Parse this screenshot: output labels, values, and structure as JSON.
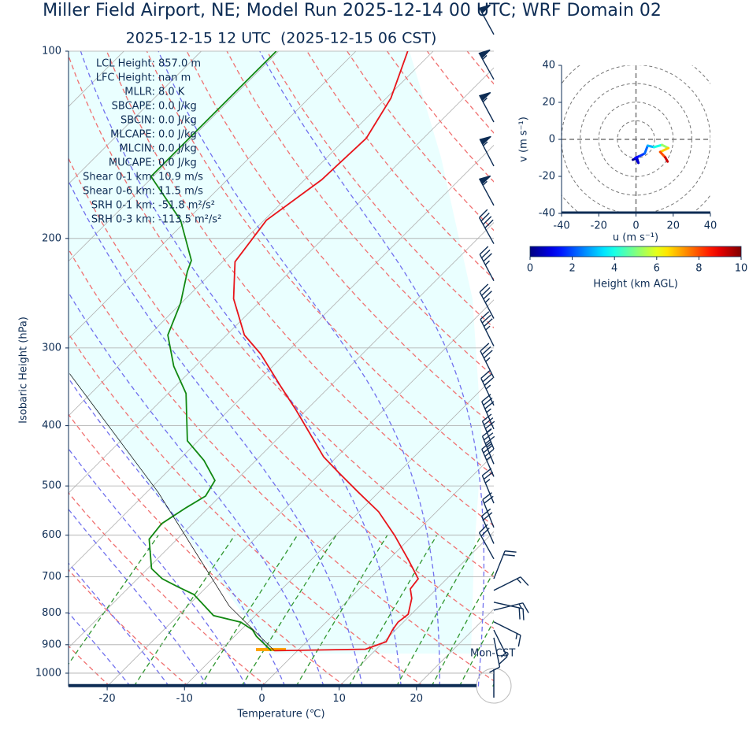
{
  "chart_data": [
    {
      "type": "skewt",
      "title": "Miller Field Airport, NE; Model Run 2025-12-14 00 UTC; WRF Domain 02",
      "subtitle": "2025-12-15 12 UTC  (2025-12-15 06 CST)",
      "xlabel": "Temperature (℃)",
      "ylabel": "Isobaric Height (hPa)",
      "xlim": [
        -25,
        30
      ],
      "ylim": [
        1050,
        100
      ],
      "yscale": "log",
      "skew_deg": 45,
      "xticks": [
        -20,
        -10,
        0,
        10,
        20
      ],
      "yticks": [
        100,
        200,
        300,
        400,
        500,
        600,
        700,
        800,
        900,
        1000
      ],
      "grid": true,
      "series": [
        {
          "color": "#e8141a",
          "pressure": [
            920,
            915,
            890,
            852,
            828,
            804,
            758,
            732,
            705,
            655,
            600,
            550,
            512,
            476,
            449,
            417,
            377,
            345,
            307,
            286,
            250,
            218,
            187,
            161,
            138,
            119,
            100
          ],
          "values": [
            -3.0,
            8.6,
            10.3,
            9.6,
            9.3,
            9.6,
            8.0,
            6.6,
            6.3,
            2.4,
            -2.4,
            -7.5,
            -12.6,
            -17.7,
            -21.7,
            -25.8,
            -31.4,
            -36.5,
            -43.1,
            -47.7,
            -53.8,
            -58.4,
            -59.7,
            -57.8,
            -57.4,
            -59.4,
            -63.3
          ]
        },
        {
          "color": "#118811",
          "pressure": [
            920,
            872,
            852,
            828,
            808,
            747,
            726,
            705,
            679,
            609,
            575,
            542,
            519,
            490,
            455,
            423,
            355,
            321,
            286,
            254,
            226,
            217,
            187,
            159,
            132,
            116,
            100
          ],
          "values": [
            -3.4,
            -7.2,
            -8.5,
            -11.0,
            -15.4,
            -20.7,
            -23.8,
            -26.8,
            -29.5,
            -33.6,
            -34.0,
            -32.9,
            -31.9,
            -32.7,
            -36.7,
            -41.4,
            -47.7,
            -52.8,
            -57.6,
            -60.1,
            -63.3,
            -64.2,
            -70.8,
            -80.3,
            -80.3,
            -80.3,
            -80.3
          ]
        },
        {
          "color": "#000000",
          "pressure": [
            920,
            780,
            512,
            405,
            330
          ],
          "values": [
            -3.0,
            -14.6,
            -38.5,
            -52.8,
            -65.3
          ]
        }
      ],
      "winds": {
        "pressure": [
          94,
          111,
          130,
          153,
          177,
          204,
          234,
          269,
          298,
          335,
          371,
          405,
          436,
          461,
          483,
          533,
          583,
          619,
          655,
          705,
          736,
          769,
          792,
          827,
          852,
          877
        ],
        "u": [
          12,
          14,
          14,
          13,
          13,
          10,
          9,
          9,
          8,
          8,
          8,
          7,
          7,
          7,
          7,
          5,
          4,
          4,
          5,
          -4,
          -8,
          -9,
          -8,
          -6,
          -3,
          -1
        ],
        "v": [
          -22,
          -25,
          -26,
          -25,
          -24,
          -18,
          -17,
          -17,
          -16,
          -16,
          -17,
          -16,
          -17,
          -17,
          -16,
          -12,
          -10,
          -9,
          -9,
          -10,
          -4,
          2,
          -2,
          3,
          6,
          5
        ]
      },
      "stats": [
        {
          "label": "LCL Height:",
          "value": "857.0 m"
        },
        {
          "label": "LFC Height:",
          "value": "nan m"
        },
        {
          "label": "MLLR:",
          "value": "8.0 K"
        },
        {
          "label": "SBCAPE:",
          "value": "0.0 J/kg"
        },
        {
          "label": "SBCIN:",
          "value": "0.0 J/kg"
        },
        {
          "label": "MLCAPE:",
          "value": "0.0 J/kg"
        },
        {
          "label": "MLCIN:",
          "value": "0.0 J/kg"
        },
        {
          "label": "MUCAPE:",
          "value": "0.0 J/kg"
        },
        {
          "label": "Shear 0-1 km:",
          "value": "10.9 m/s"
        },
        {
          "label": "Shear 0-6 km:",
          "value": "11.5 m/s"
        },
        {
          "label": "SRH 0-1 km:",
          "value": "-51.8 m²/s²"
        },
        {
          "label": "SRH 0-3 km:",
          "value": "-113.5 m²/s²"
        }
      ],
      "annotation": "Mon-CST"
    },
    {
      "type": "hodograph",
      "xlabel": "u (m s⁻¹)",
      "ylabel": "v (m s⁻¹)",
      "xlim": [
        -40,
        40
      ],
      "ylim": [
        -40,
        40
      ],
      "xticks": [
        -40,
        -20,
        0,
        20,
        40
      ],
      "yticks": [
        -40,
        -20,
        0,
        20,
        40
      ],
      "ring_step": 10,
      "u": [
        -1.7,
        0.5,
        1.3,
        -0.3,
        2,
        4.7,
        6.3,
        9.7,
        14,
        17.4,
        13,
        15.7,
        17
      ],
      "v": [
        -11,
        -10,
        -12.7,
        -10,
        -9,
        -7.6,
        -3.4,
        -4.2,
        -3,
        -4.7,
        -6.8,
        -9.7,
        -12
      ],
      "height": [
        0,
        0.3,
        0.6,
        1,
        1.5,
        2,
        2.5,
        3.5,
        4.5,
        6,
        7.5,
        8.5,
        10
      ],
      "colorbar": {
        "label": "Height (km AGL)",
        "lim": [
          0,
          10
        ],
        "ticks": [
          0,
          2,
          4,
          6,
          8,
          10
        ],
        "colormap": "jet"
      }
    }
  ]
}
